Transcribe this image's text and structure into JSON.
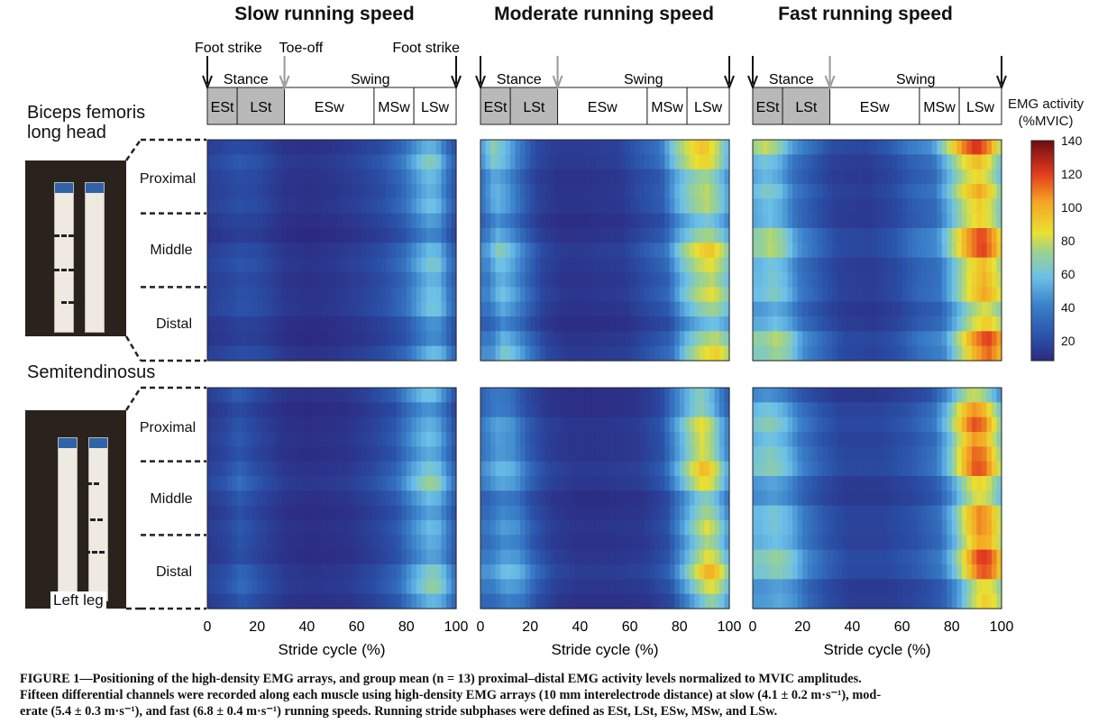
{
  "speed_titles": [
    "Slow running speed",
    "Moderate running speed",
    "Fast running speed"
  ],
  "event_labels": {
    "foot_strike_start": "Foot strike",
    "toe_off": "Toe-off",
    "foot_strike_end": "Foot strike"
  },
  "phase_group_labels": {
    "stance": "Stance",
    "swing": "Swing"
  },
  "phases": [
    {
      "label": "ESt",
      "start": 0,
      "end": 12,
      "shaded": true
    },
    {
      "label": "LSt",
      "start": 12,
      "end": 31,
      "shaded": true
    },
    {
      "label": "ESw",
      "start": 31,
      "end": 67,
      "shaded": false
    },
    {
      "label": "MSw",
      "start": 67,
      "end": 83,
      "shaded": false
    },
    {
      "label": "LSw",
      "start": 83,
      "end": 100,
      "shaded": false
    }
  ],
  "muscles": [
    {
      "name": "Biceps femoris long head",
      "name_lines": [
        "Biceps femoris",
        "long head"
      ]
    },
    {
      "name": "Semitendinosus",
      "name_lines": [
        "Semitendinosus"
      ]
    }
  ],
  "regions": [
    "Proximal",
    "Middle",
    "Distal"
  ],
  "photo_caption": "Left leg",
  "colorbar": {
    "title_lines": [
      "EMG activity",
      "(%MVIC)"
    ],
    "min": 8,
    "max": 140,
    "ticks": [
      20,
      40,
      60,
      80,
      100,
      120,
      140
    ]
  },
  "axis": {
    "xlabel": "Stride cycle (%)",
    "ticks": [
      0,
      20,
      40,
      60,
      80,
      100
    ]
  },
  "caption": [
    "FIGURE 1—Positioning of the high-density EMG arrays, and group mean (n = 13) proximal–distal EMG activity levels normalized to MVIC amplitudes.",
    "Fifteen differential channels were recorded along each muscle using high-density EMG arrays (10 mm interelectrode distance) at slow (4.1 ± 0.2 m·s⁻¹), mod-",
    "erate (5.4 ± 0.3 m·s⁻¹), and fast (6.8 ± 0.4 m·s⁻¹) running speeds. Running stride subphases were defined as ESt, LSt, ESw, MSw, and LSw."
  ],
  "colors": {
    "shaded_phase": "#b9b9b9",
    "dashed_line": "#222222"
  },
  "chart_data": [
    {
      "type": "heatmap",
      "title": "Slow running speed",
      "muscle": "Biceps femoris long head",
      "xlabel": "Stride cycle (%)",
      "xlim": [
        0,
        100
      ],
      "channels": 15,
      "profile": [
        [
          0,
          18
        ],
        [
          5,
          20
        ],
        [
          12,
          24
        ],
        [
          20,
          22
        ],
        [
          30,
          14
        ],
        [
          40,
          12
        ],
        [
          50,
          14
        ],
        [
          60,
          18
        ],
        [
          70,
          24
        ],
        [
          78,
          34
        ],
        [
          84,
          50
        ],
        [
          88,
          60
        ],
        [
          92,
          58
        ],
        [
          96,
          38
        ],
        [
          100,
          24
        ]
      ]
    },
    {
      "type": "heatmap",
      "title": "Moderate running speed",
      "muscle": "Biceps femoris long head",
      "xlabel": "Stride cycle (%)",
      "xlim": [
        0,
        100
      ],
      "channels": 15,
      "profile": [
        [
          0,
          42
        ],
        [
          5,
          62
        ],
        [
          10,
          52
        ],
        [
          16,
          34
        ],
        [
          22,
          20
        ],
        [
          30,
          14
        ],
        [
          40,
          14
        ],
        [
          55,
          16
        ],
        [
          65,
          26
        ],
        [
          72,
          32
        ],
        [
          78,
          60
        ],
        [
          84,
          78
        ],
        [
          90,
          88
        ],
        [
          95,
          72
        ],
        [
          100,
          48
        ]
      ]
    },
    {
      "type": "heatmap",
      "title": "Fast running speed",
      "muscle": "Biceps femoris long head",
      "xlabel": "Stride cycle (%)",
      "xlim": [
        0,
        100
      ],
      "channels": 15,
      "profile": [
        [
          0,
          64
        ],
        [
          5,
          72
        ],
        [
          10,
          64
        ],
        [
          16,
          42
        ],
        [
          24,
          30
        ],
        [
          32,
          20
        ],
        [
          45,
          18
        ],
        [
          55,
          24
        ],
        [
          63,
          34
        ],
        [
          72,
          40
        ],
        [
          78,
          68
        ],
        [
          84,
          98
        ],
        [
          90,
          116
        ],
        [
          95,
          98
        ],
        [
          100,
          66
        ]
      ]
    },
    {
      "type": "heatmap",
      "title": "Slow running speed",
      "muscle": "Semitendinosus",
      "xlabel": "Stride cycle (%)",
      "xlim": [
        0,
        100
      ],
      "channels": 15,
      "profile": [
        [
          0,
          18
        ],
        [
          6,
          22
        ],
        [
          12,
          30
        ],
        [
          20,
          22
        ],
        [
          30,
          14
        ],
        [
          40,
          12
        ],
        [
          55,
          14
        ],
        [
          65,
          20
        ],
        [
          75,
          30
        ],
        [
          82,
          50
        ],
        [
          88,
          64
        ],
        [
          92,
          60
        ],
        [
          96,
          42
        ],
        [
          100,
          24
        ]
      ]
    },
    {
      "type": "heatmap",
      "title": "Moderate running speed",
      "muscle": "Semitendinosus",
      "xlabel": "Stride cycle (%)",
      "xlim": [
        0,
        100
      ],
      "channels": 15,
      "profile": [
        [
          0,
          40
        ],
        [
          6,
          52
        ],
        [
          12,
          48
        ],
        [
          18,
          30
        ],
        [
          26,
          18
        ],
        [
          35,
          14
        ],
        [
          50,
          14
        ],
        [
          62,
          16
        ],
        [
          72,
          26
        ],
        [
          78,
          52
        ],
        [
          84,
          78
        ],
        [
          88,
          92
        ],
        [
          92,
          80
        ],
        [
          96,
          56
        ],
        [
          100,
          36
        ]
      ]
    },
    {
      "type": "heatmap",
      "title": "Fast running speed",
      "muscle": "Semitendinosus",
      "xlabel": "Stride cycle (%)",
      "xlim": [
        0,
        100
      ],
      "channels": 15,
      "profile": [
        [
          0,
          60
        ],
        [
          6,
          66
        ],
        [
          12,
          58
        ],
        [
          18,
          40
        ],
        [
          26,
          28
        ],
        [
          35,
          20
        ],
        [
          50,
          20
        ],
        [
          62,
          26
        ],
        [
          72,
          36
        ],
        [
          78,
          62
        ],
        [
          84,
          100
        ],
        [
          88,
          118
        ],
        [
          92,
          112
        ],
        [
          96,
          88
        ],
        [
          100,
          60
        ]
      ]
    }
  ]
}
